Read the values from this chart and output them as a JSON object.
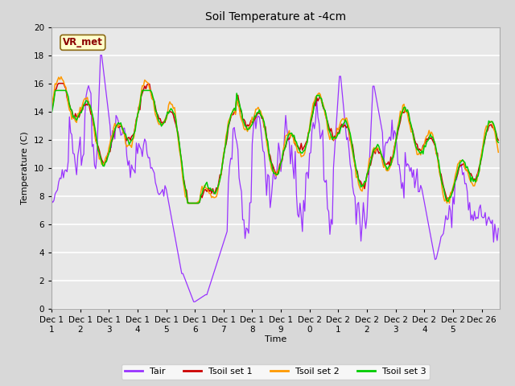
{
  "title": "Soil Temperature at -4cm",
  "xlabel": "Time",
  "ylabel": "Temperature (C)",
  "ylim": [
    0,
    20
  ],
  "background_color": "#d8d8d8",
  "plot_bg_color": "#e8e8e8",
  "annotation_text": "VR_met",
  "annotation_bg": "#ffffcc",
  "annotation_border": "#8B0000",
  "colors": {
    "Tair": "#9933ff",
    "Tsoil1": "#cc0000",
    "Tsoil2": "#ff9900",
    "Tsoil3": "#00cc00"
  },
  "legend_labels": [
    "Tair",
    "Tsoil set 1",
    "Tsoil set 2",
    "Tsoil set 3"
  ],
  "xtick_labels": [
    "Dec 1\n1",
    "Dec 1\n2",
    "Dec 1\n3",
    "Dec 1\n4",
    "Dec 1\n5",
    "Dec 1\n6",
    "Dec 1\n7",
    "Dec 1\n8",
    "Dec 1\n9",
    "Dec 2\n0",
    "Dec 2\n1",
    "Dec 2\n2",
    "Dec 2\n3",
    "Dec 2\n4",
    "Dec 2\n5",
    "Dec 26"
  ],
  "xtick_positions": [
    0,
    24,
    48,
    72,
    96,
    120,
    144,
    168,
    192,
    216,
    240,
    264,
    288,
    312,
    336,
    360
  ],
  "n_points": 375
}
